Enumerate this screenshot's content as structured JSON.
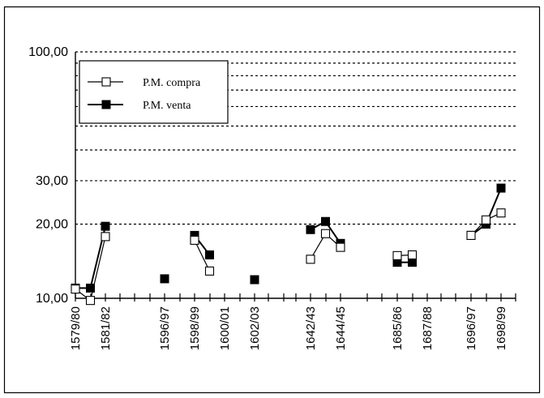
{
  "chart_data": {
    "type": "line",
    "y_scale": "log",
    "ylim": [
      10,
      100
    ],
    "y_ticks": [
      "10,00",
      "20,00",
      "30,00",
      "100,00"
    ],
    "y_tick_values": [
      10,
      20,
      30,
      100
    ],
    "gridlines": [
      20,
      30,
      40,
      50,
      60,
      70,
      80,
      90,
      100
    ],
    "x_tick_labels": [
      "1579/80",
      "1581/82",
      "1596/97",
      "1598/99",
      "1600/01",
      "1602/03",
      "1642/43",
      "1644/45",
      "1685/86",
      "1687/88",
      "1696/97",
      "1698/99"
    ],
    "legend": {
      "position": "top-left"
    },
    "series": [
      {
        "name": "P.M. compra",
        "marker": "open-square",
        "segments": [
          [
            {
              "x": "1579/80",
              "y": 10.9
            },
            {
              "x": "1580/81",
              "y": 9.8
            },
            {
              "x": "1581/82",
              "y": 17.8
            }
          ],
          [
            {
              "x": "1598/99",
              "y": 17.2
            },
            {
              "x": "1599/00",
              "y": 12.9
            }
          ],
          [
            {
              "x": "1642/43",
              "y": 14.4
            },
            {
              "x": "1643/44",
              "y": 18.3
            },
            {
              "x": "1644/45",
              "y": 16.1
            }
          ],
          [
            {
              "x": "1685/86",
              "y": 14.9
            },
            {
              "x": "1686/87",
              "y": 15.0
            }
          ],
          [
            {
              "x": "1696/97",
              "y": 18.0
            },
            {
              "x": "1697/98",
              "y": 20.8
            },
            {
              "x": "1698/99",
              "y": 22.2
            }
          ]
        ]
      },
      {
        "name": "P.M. venta",
        "marker": "filled-square",
        "segments": [
          [
            {
              "x": "1579/80",
              "y": 11.0
            },
            {
              "x": "1580/81",
              "y": 11.0
            },
            {
              "x": "1581/82",
              "y": 19.6
            }
          ],
          [
            {
              "x": "1596/97",
              "y": 12.0
            }
          ],
          [
            {
              "x": "1598/99",
              "y": 18.0
            },
            {
              "x": "1599/00",
              "y": 15.0
            }
          ],
          [
            {
              "x": "1602/03",
              "y": 11.9
            }
          ],
          [
            {
              "x": "1642/43",
              "y": 19.0
            },
            {
              "x": "1643/44",
              "y": 20.5
            },
            {
              "x": "1644/45",
              "y": 16.7
            }
          ],
          [
            {
              "x": "1685/86",
              "y": 14.0
            },
            {
              "x": "1686/87",
              "y": 14.0
            }
          ],
          [
            {
              "x": "1696/97",
              "y": 18.0
            },
            {
              "x": "1697/98",
              "y": 20.0
            },
            {
              "x": "1698/99",
              "y": 28.0
            }
          ]
        ]
      }
    ]
  }
}
